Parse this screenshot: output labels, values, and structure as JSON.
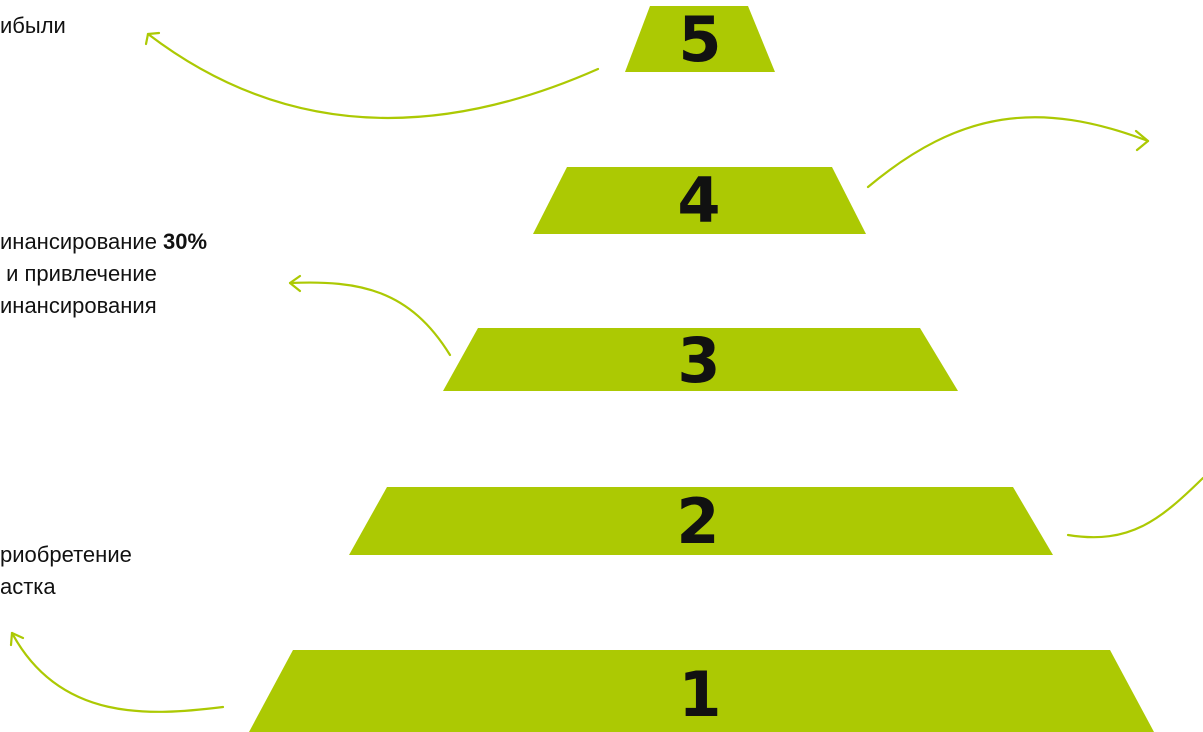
{
  "colors": {
    "step_fill": "#acc903",
    "number": "#111111",
    "arrow": "#acc903",
    "text": "#111111"
  },
  "pyramid": {
    "steps": [
      {
        "number": "5"
      },
      {
        "number": "4"
      },
      {
        "number": "3"
      },
      {
        "number": "2"
      },
      {
        "number": "1"
      }
    ]
  },
  "labels": {
    "step5": {
      "line1": "ибыли"
    },
    "step3": {
      "line1_prefix": "инансирование ",
      "line1_bold": "30%",
      "line2": " и привлечение",
      "line3": "инансирования"
    },
    "step1": {
      "line1": "риобретение",
      "line2": "астка"
    }
  }
}
